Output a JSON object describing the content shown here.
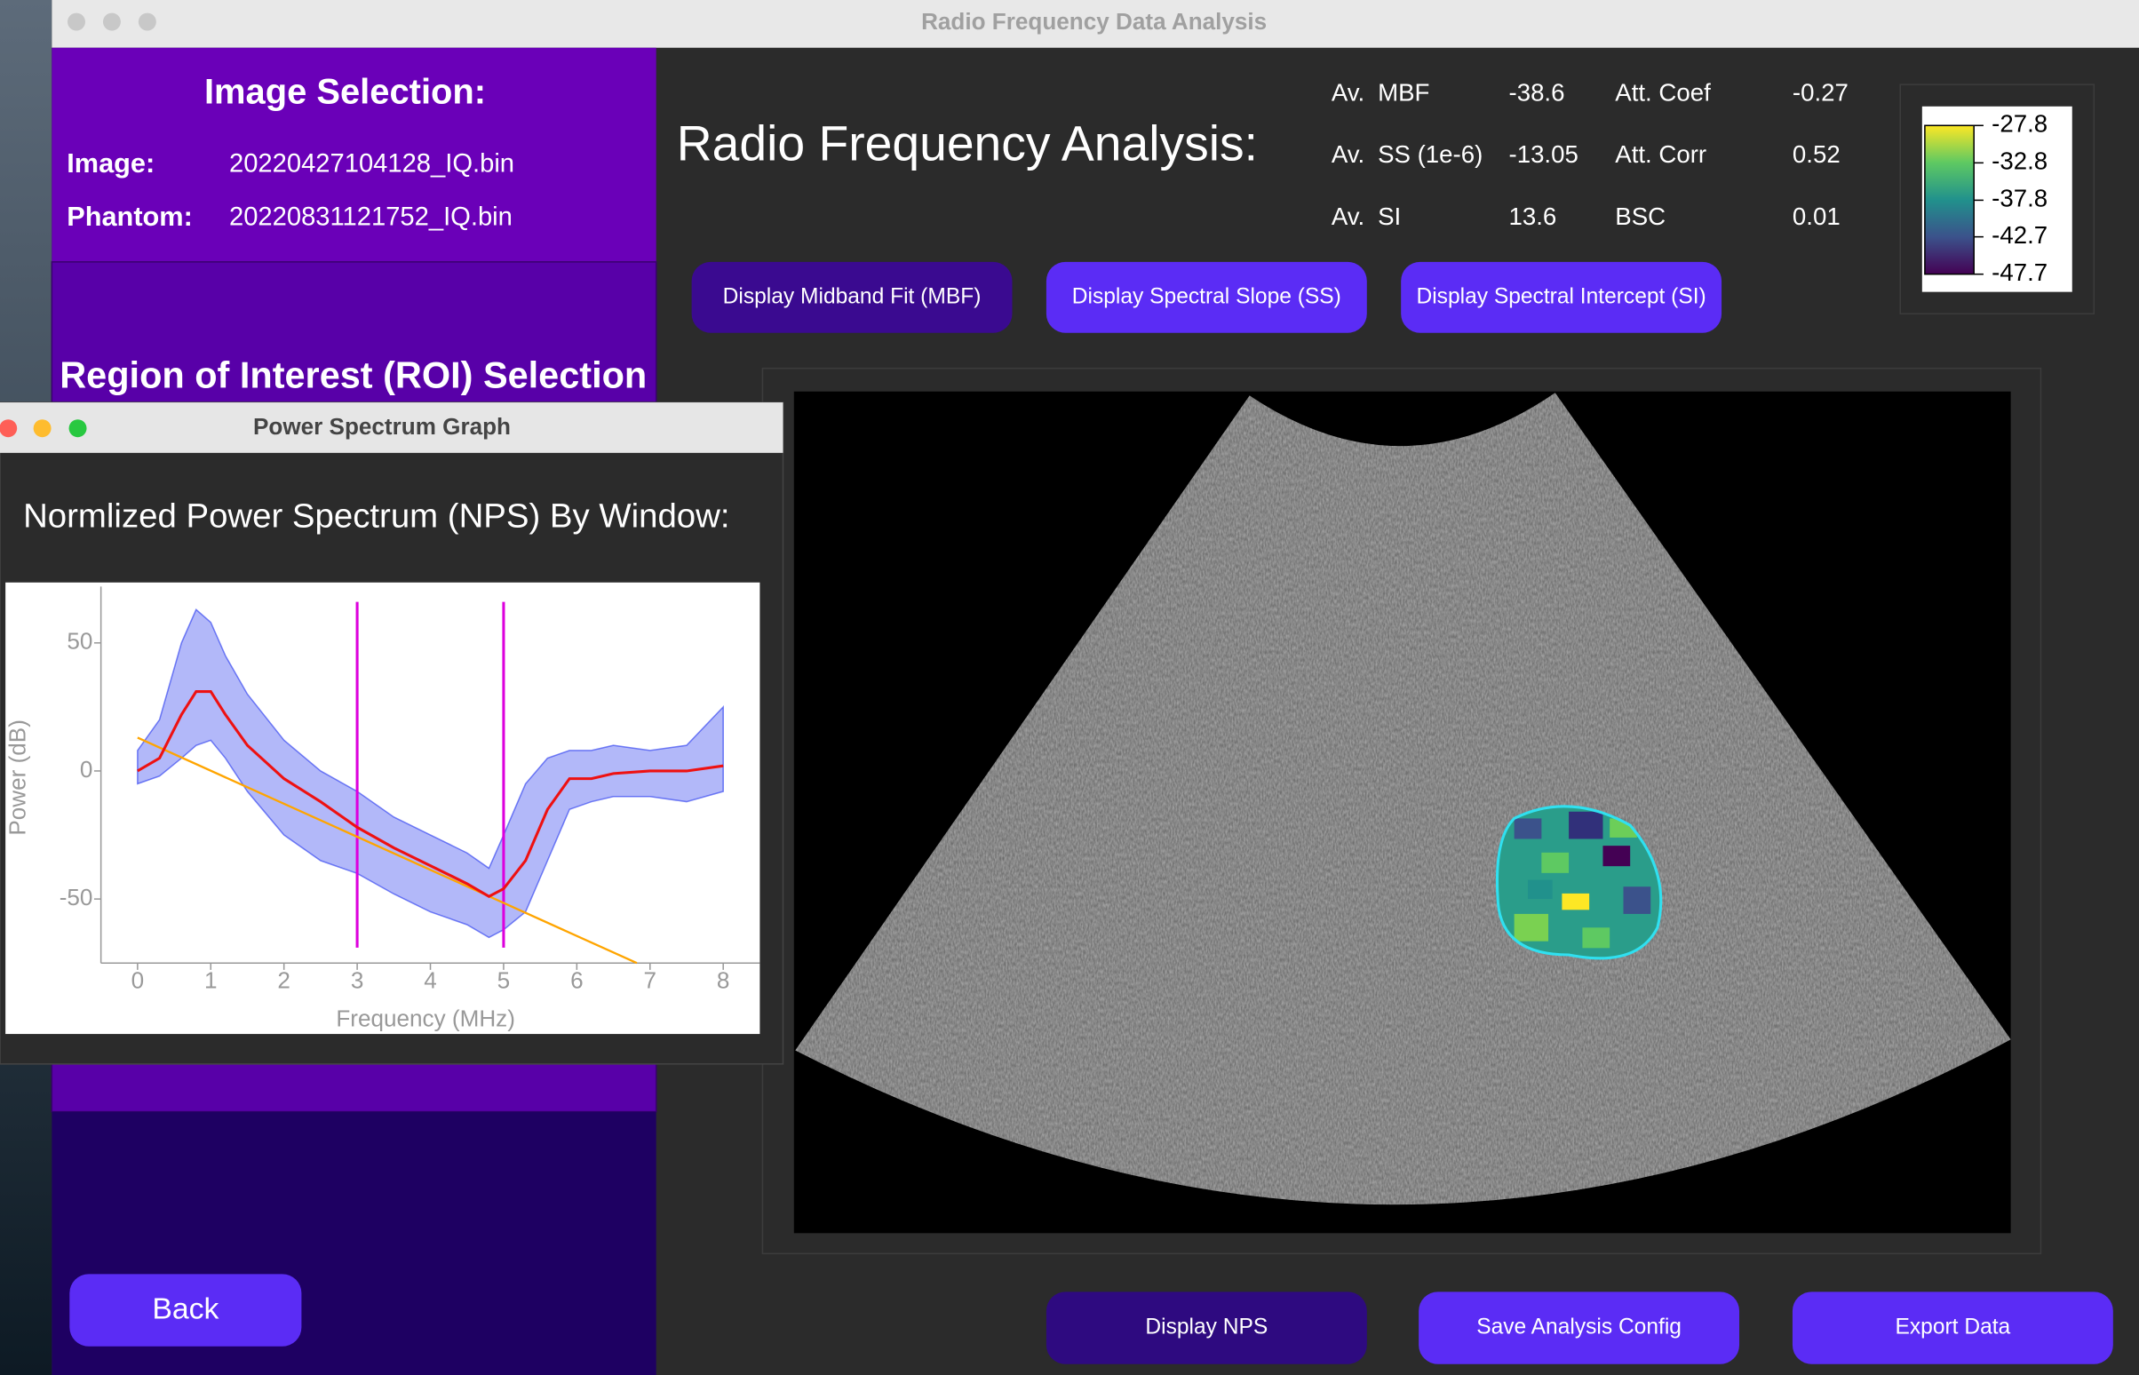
{
  "main_window": {
    "title": "Radio Frequency Data Analysis"
  },
  "image_selection": {
    "title": "Image Selection:",
    "image_label": "Image:",
    "image_file": "20220427104128_IQ.bin",
    "phantom_label": "Phantom:",
    "phantom_file": "20220831121752_IQ.bin"
  },
  "roi_selection": {
    "title": "Region of Interest (ROI) Selection"
  },
  "back_button": "Back",
  "analysis": {
    "title": "Radio Frequency Analysis:",
    "stats": [
      {
        "prefix": "Av.",
        "label": "MBF",
        "value": -38.6,
        "label2": "Att. Coef",
        "value2": -0.27
      },
      {
        "prefix": "Av.",
        "label": "SS (1e-6)",
        "value": -13.05,
        "label2": "Att. Corr",
        "value2": 0.52
      },
      {
        "prefix": "Av.",
        "label": "SI",
        "value": 13.6,
        "label2": "BSC",
        "value2": 0.01
      }
    ]
  },
  "display_buttons": [
    "Display Midband Fit (MBF)",
    "Display Spectral Slope (SS)",
    "Display Spectral Intercept (SI)"
  ],
  "colorbar": {
    "ticks": [
      -27.8,
      -32.8,
      -37.8,
      -42.7,
      -47.7
    ]
  },
  "bottom_buttons": [
    "Display NPS",
    "Save Analysis Config",
    "Export Data"
  ],
  "nps_window": {
    "title": "Power Spectrum Graph",
    "heading": "Normlized Power Spectrum (NPS) By Window:",
    "chart": {
      "type": "line",
      "x_label": "Frequency (MHz)",
      "y_label": "Power (dB)",
      "xlim": [
        -0.5,
        8.5
      ],
      "ylim": [
        -75,
        72
      ],
      "xticks": [
        0,
        1,
        2,
        3,
        4,
        5,
        6,
        7,
        8
      ],
      "yticks": [
        -50,
        0,
        50
      ],
      "x": [
        0,
        0.3,
        0.6,
        0.8,
        1.0,
        1.2,
        1.5,
        2,
        2.5,
        3,
        3.5,
        4,
        4.5,
        4.8,
        5,
        5.3,
        5.6,
        5.9,
        6.2,
        6.5,
        7,
        7.5,
        8
      ],
      "envelope": {
        "color": "#2233ee",
        "upper": [
          8,
          20,
          50,
          63,
          58,
          45,
          30,
          12,
          0,
          -8,
          -18,
          -25,
          -32,
          -38,
          -25,
          -5,
          5,
          8,
          8,
          10,
          8,
          10,
          25
        ],
        "lower": [
          -5,
          -2,
          5,
          10,
          12,
          5,
          -8,
          -25,
          -35,
          -40,
          -48,
          -55,
          -60,
          -65,
          -62,
          -55,
          -35,
          -15,
          -12,
          -10,
          -10,
          -12,
          -8
        ]
      },
      "mean": {
        "color": "#ee1111",
        "values": [
          0,
          5,
          22,
          31,
          31,
          22,
          10,
          -3,
          -12,
          -22,
          -30,
          -37,
          -44,
          -49,
          -46,
          -35,
          -15,
          -3,
          -3,
          -1,
          0,
          0,
          2
        ]
      },
      "fit": {
        "color": "#ffa500",
        "x": [
          0,
          6.82
        ],
        "values": [
          13,
          -75
        ]
      },
      "vlines": {
        "color": "#dd00dd",
        "x": [
          3,
          5
        ],
        "ylim": [
          66,
          -69
        ]
      }
    }
  }
}
